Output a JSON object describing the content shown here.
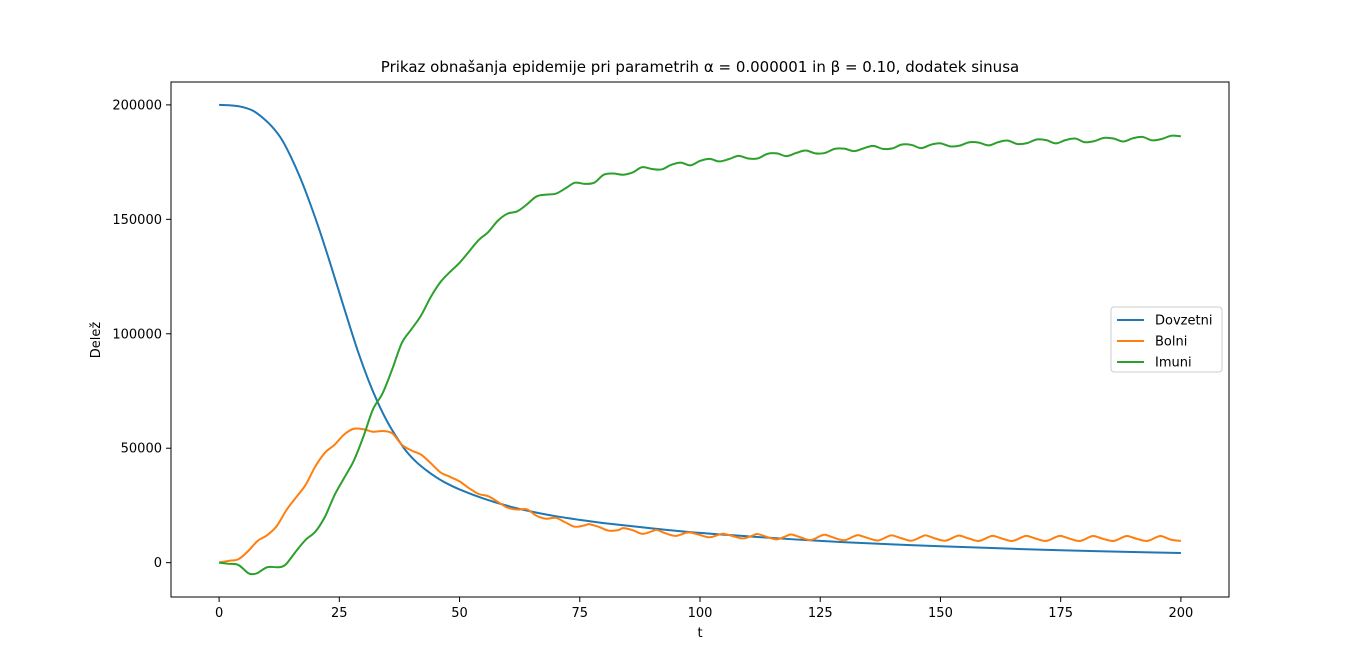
{
  "chart_data": {
    "type": "line",
    "title": "Prikaz obnašanja epidemije pri parametrih α = 0.000001 in β = 0.10, dodatek sinusa",
    "xlabel": "t",
    "ylabel": "Delež",
    "xlim": [
      -10,
      210
    ],
    "ylim": [
      -15000,
      210000
    ],
    "xticks": [
      0,
      25,
      50,
      75,
      100,
      125,
      150,
      175,
      200
    ],
    "yticks": [
      0,
      50000,
      100000,
      150000,
      200000
    ],
    "xtick_labels": [
      "0",
      "25",
      "50",
      "75",
      "100",
      "125",
      "150",
      "175",
      "200"
    ],
    "ytick_labels": [
      "0",
      "50000",
      "100000",
      "150000",
      "200000"
    ],
    "grid": false,
    "legend_position": "center-right",
    "series": [
      {
        "name": "Dovzetni",
        "color": "#1f77b4",
        "points": [
          [
            0,
            200000
          ],
          [
            3,
            199700
          ],
          [
            5,
            199000
          ],
          [
            7,
            197500
          ],
          [
            9,
            194500
          ],
          [
            11,
            190500
          ],
          [
            13,
            185000
          ],
          [
            15,
            177000
          ],
          [
            17,
            167500
          ],
          [
            19,
            156500
          ],
          [
            21,
            144500
          ],
          [
            23,
            131500
          ],
          [
            25,
            118000
          ],
          [
            27,
            104500
          ],
          [
            29,
            91500
          ],
          [
            31,
            80000
          ],
          [
            33,
            70000
          ],
          [
            35,
            61500
          ],
          [
            37,
            54500
          ],
          [
            39,
            48500
          ],
          [
            41,
            44000
          ],
          [
            43,
            40500
          ],
          [
            45,
            37500
          ],
          [
            47,
            35000
          ],
          [
            50,
            32000
          ],
          [
            55,
            28000
          ],
          [
            60,
            24800
          ],
          [
            65,
            22300
          ],
          [
            70,
            20300
          ],
          [
            75,
            18700
          ],
          [
            80,
            17300
          ],
          [
            90,
            15000
          ],
          [
            100,
            13000
          ],
          [
            110,
            11500
          ],
          [
            125,
            9500
          ],
          [
            140,
            8000
          ],
          [
            150,
            7200
          ],
          [
            175,
            5400
          ],
          [
            200,
            4200
          ]
        ]
      },
      {
        "name": "Bolni",
        "color": "#ff7f0e",
        "points": [
          [
            0,
            100
          ],
          [
            2,
            800
          ],
          [
            4,
            1500
          ],
          [
            6,
            5000
          ],
          [
            8,
            9500
          ],
          [
            10,
            12000
          ],
          [
            12,
            16000
          ],
          [
            14,
            23000
          ],
          [
            16,
            28500
          ],
          [
            18,
            34000
          ],
          [
            20,
            42000
          ],
          [
            22,
            48000
          ],
          [
            24,
            51500
          ],
          [
            26,
            56000
          ],
          [
            28,
            58500
          ],
          [
            30,
            58300
          ],
          [
            32,
            57200
          ],
          [
            34,
            57500
          ],
          [
            36,
            56500
          ],
          [
            38,
            51500
          ],
          [
            40,
            49000
          ],
          [
            42,
            47200
          ],
          [
            44,
            43500
          ],
          [
            46,
            39500
          ],
          [
            48,
            37500
          ],
          [
            50,
            35500
          ],
          [
            52,
            32500
          ],
          [
            54,
            30000
          ],
          [
            56,
            29000
          ],
          [
            58,
            26500
          ],
          [
            60,
            24000
          ],
          [
            62,
            23200
          ],
          [
            64,
            23300
          ],
          [
            66,
            20500
          ],
          [
            68,
            19200
          ],
          [
            70,
            19600
          ],
          [
            72,
            17600
          ],
          [
            74,
            15700
          ],
          [
            76,
            16300
          ],
          [
            77,
            16800
          ],
          [
            79,
            15600
          ],
          [
            81,
            14000
          ],
          [
            83,
            14200
          ],
          [
            84,
            15100
          ],
          [
            86,
            14200
          ],
          [
            88,
            12600
          ],
          [
            90,
            13700
          ],
          [
            91,
            14300
          ],
          [
            93,
            12700
          ],
          [
            95,
            11700
          ],
          [
            97,
            13000
          ],
          [
            98,
            13200
          ],
          [
            100,
            12100
          ],
          [
            102,
            11100
          ],
          [
            104,
            12300
          ],
          [
            105,
            12600
          ],
          [
            107,
            11500
          ],
          [
            109,
            10600
          ],
          [
            111,
            11900
          ],
          [
            112,
            12500
          ],
          [
            114,
            11200
          ],
          [
            116,
            10200
          ],
          [
            118,
            11700
          ],
          [
            119,
            12300
          ],
          [
            121,
            11000
          ],
          [
            123,
            9900
          ],
          [
            125,
            11600
          ],
          [
            126,
            12200
          ],
          [
            128,
            10800
          ],
          [
            130,
            9800
          ],
          [
            132,
            11500
          ],
          [
            133,
            12000
          ],
          [
            135,
            10700
          ],
          [
            137,
            9700
          ],
          [
            139,
            11400
          ],
          [
            140,
            11900
          ],
          [
            142,
            10600
          ],
          [
            144,
            9600
          ],
          [
            146,
            11300
          ],
          [
            147,
            11900
          ],
          [
            149,
            10500
          ],
          [
            151,
            9600
          ],
          [
            153,
            11300
          ],
          [
            154,
            11800
          ],
          [
            156,
            10500
          ],
          [
            158,
            9500
          ],
          [
            160,
            11200
          ],
          [
            161,
            11700
          ],
          [
            163,
            10400
          ],
          [
            165,
            9500
          ],
          [
            167,
            11200
          ],
          [
            168,
            11700
          ],
          [
            170,
            10400
          ],
          [
            172,
            9500
          ],
          [
            174,
            11200
          ],
          [
            175,
            11700
          ],
          [
            177,
            10400
          ],
          [
            179,
            9500
          ],
          [
            181,
            11200
          ],
          [
            182,
            11600
          ],
          [
            184,
            10300
          ],
          [
            186,
            9500
          ],
          [
            188,
            11200
          ],
          [
            189,
            11600
          ],
          [
            191,
            10300
          ],
          [
            193,
            9500
          ],
          [
            195,
            11200
          ],
          [
            196,
            11600
          ],
          [
            198,
            10000
          ],
          [
            200,
            9500
          ]
        ]
      },
      {
        "name": "Imuni",
        "color": "#2ca02c",
        "points": [
          [
            0,
            0
          ],
          [
            2,
            -500
          ],
          [
            4,
            -1000
          ],
          [
            6,
            -4500
          ],
          [
            7,
            -5000
          ],
          [
            8,
            -4500
          ],
          [
            10,
            -2000
          ],
          [
            12,
            -2000
          ],
          [
            13,
            -1800
          ],
          [
            14,
            -500
          ],
          [
            16,
            5000
          ],
          [
            18,
            10000
          ],
          [
            20,
            13500
          ],
          [
            22,
            20000
          ],
          [
            24,
            29500
          ],
          [
            26,
            37000
          ],
          [
            28,
            44500
          ],
          [
            30,
            55000
          ],
          [
            32,
            67000
          ],
          [
            34,
            74000
          ],
          [
            36,
            84500
          ],
          [
            38,
            96000
          ],
          [
            40,
            102000
          ],
          [
            42,
            108000
          ],
          [
            44,
            116000
          ],
          [
            46,
            122500
          ],
          [
            48,
            127000
          ],
          [
            50,
            131000
          ],
          [
            52,
            136000
          ],
          [
            54,
            141000
          ],
          [
            56,
            144500
          ],
          [
            58,
            149500
          ],
          [
            60,
            152500
          ],
          [
            62,
            153500
          ],
          [
            64,
            156500
          ],
          [
            66,
            160000
          ],
          [
            68,
            160800
          ],
          [
            70,
            161200
          ],
          [
            72,
            163500
          ],
          [
            74,
            166000
          ],
          [
            76,
            165500
          ],
          [
            78,
            166000
          ],
          [
            80,
            169500
          ],
          [
            82,
            170000
          ],
          [
            84,
            169500
          ],
          [
            86,
            170500
          ],
          [
            88,
            172800
          ],
          [
            90,
            172000
          ],
          [
            92,
            171800
          ],
          [
            94,
            173800
          ],
          [
            96,
            174800
          ],
          [
            98,
            173600
          ],
          [
            100,
            175500
          ],
          [
            102,
            176400
          ],
          [
            104,
            175300
          ],
          [
            106,
            176300
          ],
          [
            108,
            177700
          ],
          [
            110,
            176600
          ],
          [
            112,
            176600
          ],
          [
            114,
            178600
          ],
          [
            116,
            178800
          ],
          [
            118,
            177600
          ],
          [
            120,
            179000
          ],
          [
            122,
            180100
          ],
          [
            124,
            178800
          ],
          [
            126,
            179000
          ],
          [
            128,
            180800
          ],
          [
            130,
            180900
          ],
          [
            132,
            179800
          ],
          [
            134,
            181000
          ],
          [
            136,
            182100
          ],
          [
            138,
            180800
          ],
          [
            140,
            181000
          ],
          [
            142,
            182700
          ],
          [
            144,
            182500
          ],
          [
            146,
            181100
          ],
          [
            148,
            182600
          ],
          [
            150,
            183200
          ],
          [
            152,
            181900
          ],
          [
            154,
            182200
          ],
          [
            156,
            183700
          ],
          [
            158,
            183500
          ],
          [
            160,
            182300
          ],
          [
            162,
            183700
          ],
          [
            164,
            184400
          ],
          [
            166,
            182900
          ],
          [
            168,
            183300
          ],
          [
            170,
            184900
          ],
          [
            172,
            184600
          ],
          [
            174,
            183200
          ],
          [
            176,
            184600
          ],
          [
            178,
            185300
          ],
          [
            180,
            183700
          ],
          [
            182,
            184200
          ],
          [
            184,
            185600
          ],
          [
            186,
            185300
          ],
          [
            188,
            184000
          ],
          [
            190,
            185400
          ],
          [
            192,
            186000
          ],
          [
            194,
            184500
          ],
          [
            196,
            185100
          ],
          [
            198,
            186500
          ],
          [
            200,
            186300
          ]
        ]
      }
    ]
  }
}
